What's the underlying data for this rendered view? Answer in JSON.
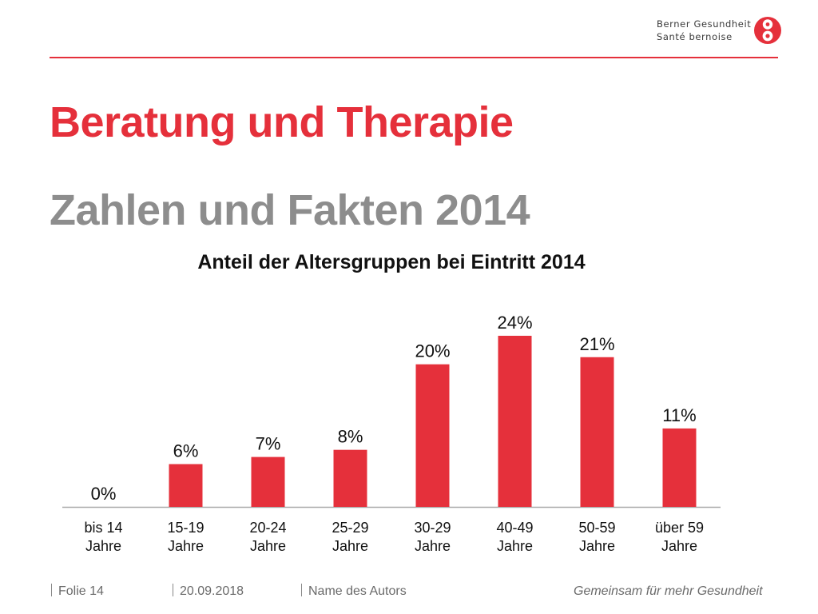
{
  "header": {
    "brand_line1": "Berner Gesundheit",
    "brand_line2": "Santé bernoise",
    "logo_icon": "berner-gesundheit-logo-icon",
    "accent_color": "#e5303b"
  },
  "slide": {
    "title": "Beratung und Therapie",
    "subtitle": "Zahlen und Fakten 2014"
  },
  "chart_data": {
    "type": "bar",
    "title": "Anteil der Altersgruppen bei Eintritt 2014",
    "categories": [
      [
        "bis 14",
        "Jahre"
      ],
      [
        "15-19",
        "Jahre"
      ],
      [
        "20-24",
        "Jahre"
      ],
      [
        "25-29",
        "Jahre"
      ],
      [
        "30-29",
        "Jahre"
      ],
      [
        "40-49",
        "Jahre"
      ],
      [
        "50-59",
        "Jahre"
      ],
      [
        "über 59",
        "Jahre"
      ]
    ],
    "values": [
      0,
      6,
      7,
      8,
      20,
      24,
      21,
      11
    ],
    "labels": [
      "0%",
      "6%",
      "7%",
      "8%",
      "20%",
      "24%",
      "21%",
      "11%"
    ],
    "unit": "%",
    "ylim": [
      0,
      24
    ],
    "grid": false,
    "bar_color": "#e5303b"
  },
  "footer": {
    "slide_label": "Folie 14",
    "date": "20.09.2018",
    "author": "Name des Autors",
    "tagline": "Gemeinsam für mehr Gesundheit"
  }
}
